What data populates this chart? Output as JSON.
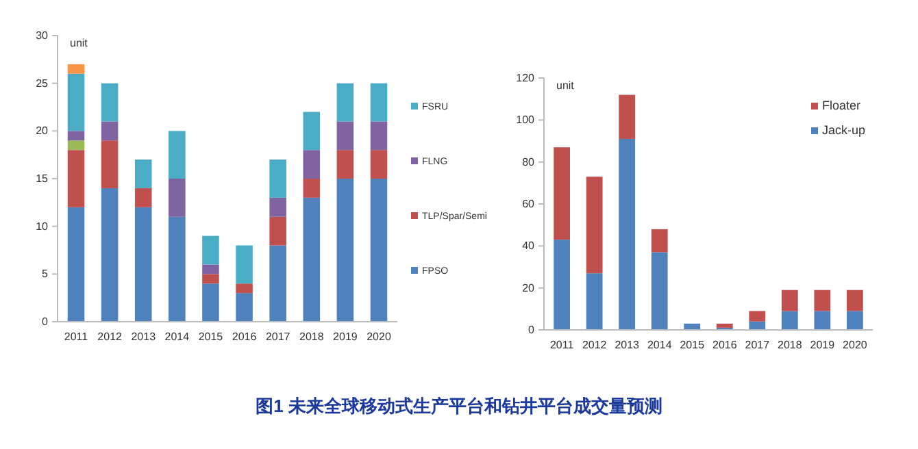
{
  "chart_data": [
    {
      "type": "bar",
      "stacked": true,
      "ylabel": "unit",
      "categories": [
        "2011",
        "2012",
        "2013",
        "2014",
        "2015",
        "2016",
        "2017",
        "2018",
        "2019",
        "2020"
      ],
      "ylim": [
        0,
        30
      ],
      "yticks": [
        0,
        5,
        10,
        15,
        20,
        25,
        30
      ],
      "grid": false,
      "legend": "right",
      "annotations": [
        "图1 未来全球移动式生产平台和钻井平台成交量预测"
      ],
      "series": [
        {
          "name": "FPSO",
          "color": "#4f81bd",
          "values": [
            12,
            14,
            12,
            11,
            4,
            3,
            8,
            13,
            15,
            15
          ]
        },
        {
          "name": "TLP/Spar/Semi",
          "color": "#c0504d",
          "values": [
            6,
            5,
            2,
            0,
            1,
            1,
            3,
            2,
            3,
            3
          ]
        },
        {
          "color": "#9bbb59",
          "values": [
            1,
            0,
            0,
            0,
            0,
            0,
            0,
            0,
            0,
            0
          ]
        },
        {
          "name": "FLNG",
          "color": "#8064a2",
          "values": [
            1,
            2,
            0,
            4,
            1,
            0,
            2,
            3,
            3,
            3
          ]
        },
        {
          "name": "FSRU",
          "color": "#4bacc6",
          "values": [
            6,
            4,
            3,
            5,
            3,
            4,
            4,
            4,
            4,
            4
          ]
        },
        {
          "color": "#f79646",
          "values": [
            1,
            0,
            0,
            0,
            0,
            0,
            0,
            0,
            0,
            0
          ]
        }
      ]
    },
    {
      "type": "bar",
      "stacked": true,
      "ylabel": "unit",
      "categories": [
        "2011",
        "2012",
        "2013",
        "2014",
        "2015",
        "2016",
        "2017",
        "2018",
        "2019",
        "2020"
      ],
      "ylim": [
        0,
        120
      ],
      "yticks": [
        0,
        20,
        40,
        60,
        80,
        100,
        120
      ],
      "grid": false,
      "legend": "top right",
      "series": [
        {
          "name": "Jack-up",
          "color": "#4f81bd",
          "values": [
            43,
            27,
            91,
            37,
            3,
            1,
            4,
            9,
            9,
            9
          ]
        },
        {
          "name": "Floater",
          "color": "#c0504d",
          "values": [
            44,
            46,
            21,
            11,
            0,
            2,
            5,
            10,
            10,
            10
          ]
        }
      ]
    }
  ]
}
